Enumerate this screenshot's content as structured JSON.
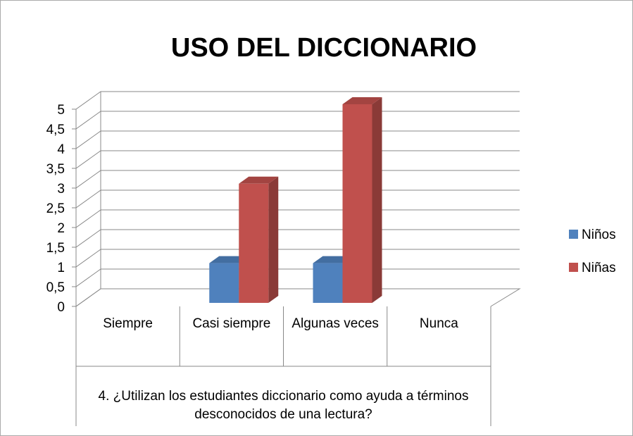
{
  "chart_data": {
    "type": "bar3d",
    "title": "USO DEL DICCIONARIO",
    "x_label": "4. ¿Utilizan los estudiantes diccionario como ayuda a  términos desconocidos de una lectura?",
    "categories": [
      "Siempre",
      "Casi siempre",
      "Algunas veces",
      "Nunca"
    ],
    "series": [
      {
        "name": "Niños",
        "color": "#4f81bd",
        "values": [
          0,
          1,
          1,
          0
        ]
      },
      {
        "name": "Niñas",
        "color": "#c0504d",
        "values": [
          0,
          3,
          5,
          0
        ]
      }
    ],
    "ylim": [
      0,
      5
    ],
    "yticks": [
      0,
      {
        "value": 0.5,
        "label": "0,5"
      },
      1,
      {
        "value": 1.5,
        "label": "1,5"
      },
      2,
      {
        "value": 2.5,
        "label": "2,5"
      },
      3,
      {
        "value": 3.5,
        "label": "3,5"
      },
      4,
      {
        "value": 4.5,
        "label": "4,5"
      },
      5
    ],
    "grid": true,
    "legend": "right"
  }
}
